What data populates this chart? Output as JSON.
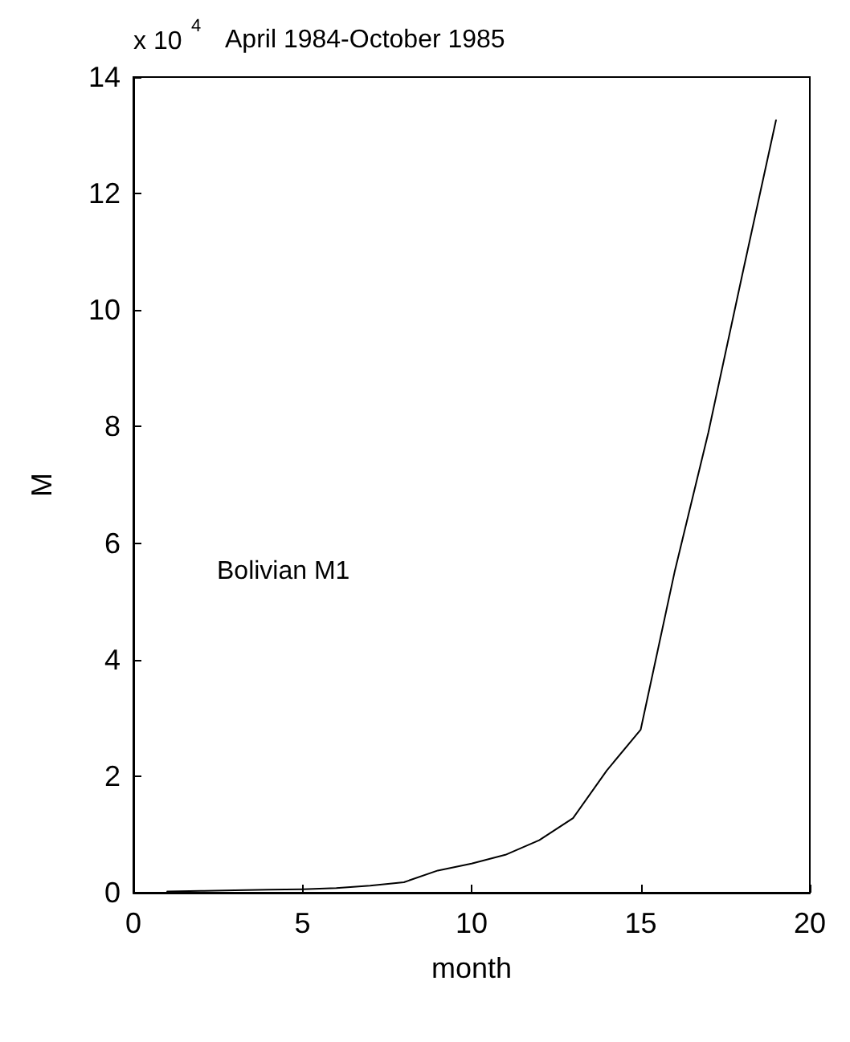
{
  "chart_data": {
    "type": "line",
    "title": "April 1984-October 1985",
    "xlabel": "month",
    "ylabel": "M",
    "annotations": [
      "x 10$^{4}$",
      "Bolivian M1"
    ],
    "x": [
      1,
      2,
      3,
      4,
      5,
      6,
      7,
      8,
      9,
      10,
      11,
      12,
      13,
      14,
      15,
      16,
      17,
      18,
      19
    ],
    "series": [
      {
        "color": "#000000",
        "values": [
          0.02,
          0.03,
          0.04,
          0.05,
          0.06,
          0.08,
          0.12,
          0.18,
          0.38,
          0.5,
          0.65,
          0.9,
          1.28,
          2.1,
          2.8,
          5.5,
          7.9,
          10.6,
          13.26
        ]
      }
    ],
    "xlim": [
      0,
      20
    ],
    "xticks": [
      0,
      5,
      10,
      15,
      20
    ],
    "ylim": [
      0,
      14
    ],
    "yticks": [
      0,
      2,
      4,
      6,
      8,
      10,
      12,
      14
    ],
    "grid": false,
    "marker": "none",
    "line_style": "solid"
  }
}
